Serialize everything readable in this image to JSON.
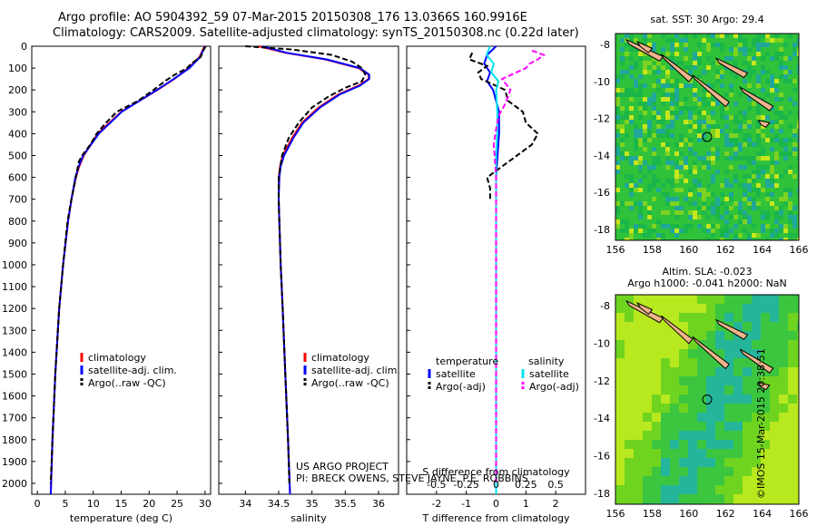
{
  "header": {
    "line1": "Argo profile: AO 5904392_59 07-Mar-2015 20150308_176 13.0366S 160.9916E",
    "line2": "Climatology: CARS2009. Satellite-adjusted climatology: synTS_20150308.nc (0.22d later)"
  },
  "credits": {
    "project": "US ARGO PROJECT",
    "pi": "PI: BRECK OWENS, STEVE JAYNE, P.E. ROBBINS",
    "stamp": "©IMOS 15-Mar-2015 20:38:51"
  },
  "colors": {
    "climatology": "#ff0000",
    "satellite": "#0000ff",
    "argo": "#000000",
    "sal_satellite": "#00e5ee",
    "sal_argo": "#ff00ff"
  },
  "chart_data": [
    {
      "type": "line",
      "xlabel": "temperature (deg C)",
      "ylim": [
        2050,
        0
      ],
      "xlim": [
        -1,
        31
      ],
      "xticks": [
        "0",
        "5",
        "10",
        "15",
        "20",
        "25",
        "30"
      ],
      "yticks": [
        "0",
        "100",
        "200",
        "300",
        "400",
        "500",
        "600",
        "700",
        "800",
        "900",
        "1000",
        "1100",
        "1200",
        "1300",
        "1400",
        "1500",
        "1600",
        "1700",
        "1800",
        "1900",
        "2000"
      ],
      "legend": [
        "climatology",
        "satellite-adj. clim.",
        "Argo(..raw -QC)"
      ],
      "series": [
        {
          "name": "climatology",
          "y": [
            0,
            50,
            100,
            150,
            200,
            300,
            400,
            500,
            550,
            600,
            700,
            800,
            1000,
            1200,
            1500,
            1800,
            2050
          ],
          "x": [
            29.9,
            29.0,
            27.0,
            24.5,
            21.5,
            15.0,
            10.8,
            8.3,
            7.5,
            6.9,
            6.1,
            5.5,
            4.6,
            3.9,
            3.2,
            2.7,
            2.4
          ]
        },
        {
          "name": "satellite-adj. clim.",
          "y": [
            0,
            50,
            100,
            150,
            200,
            300,
            400,
            500,
            550,
            600,
            700,
            800,
            1000,
            1200,
            1500,
            1800,
            2050
          ],
          "x": [
            30.0,
            29.1,
            27.2,
            24.4,
            21.4,
            15.1,
            11.0,
            8.2,
            7.4,
            6.8,
            6.1,
            5.5,
            4.6,
            3.9,
            3.2,
            2.7,
            2.4
          ]
        },
        {
          "name": "Argo(..raw -QC)",
          "y": [
            0,
            20,
            50,
            80,
            100,
            130,
            160,
            200,
            250,
            300,
            350,
            400,
            450,
            500,
            530,
            600,
            700,
            800,
            900,
            1000,
            1200,
            1500,
            1800,
            2000
          ],
          "x": [
            30.1,
            29.7,
            29.2,
            27.5,
            26.8,
            24.6,
            22.8,
            20.8,
            18.0,
            14.2,
            12.3,
            10.6,
            9.5,
            8.0,
            7.4,
            6.9,
            6.1,
            5.4,
            5.0,
            4.6,
            3.9,
            3.2,
            2.7,
            2.4
          ]
        }
      ]
    },
    {
      "type": "line",
      "xlabel": "salinity",
      "ylim": [
        2050,
        0
      ],
      "xlim": [
        33.6,
        36.3
      ],
      "xticks": [
        "34",
        "34.5",
        "35",
        "35.5",
        "36"
      ],
      "legend": [
        "climatology",
        "satellite-adj. clim.",
        "Argo(..raw -QC)"
      ],
      "series": [
        {
          "name": "climatology",
          "y": [
            0,
            30,
            60,
            100,
            130,
            150,
            180,
            220,
            280,
            350,
            420,
            500,
            550,
            600,
            700,
            800,
            1000,
            1200,
            1500,
            1800,
            2050
          ],
          "x": [
            34.2,
            34.6,
            35.2,
            35.7,
            35.85,
            35.85,
            35.7,
            35.4,
            35.1,
            34.85,
            34.7,
            34.56,
            34.52,
            34.5,
            34.5,
            34.51,
            34.53,
            34.56,
            34.6,
            34.64,
            34.67
          ]
        },
        {
          "name": "satellite-adj. clim.",
          "y": [
            0,
            30,
            60,
            100,
            130,
            150,
            180,
            220,
            280,
            350,
            420,
            500,
            550,
            600,
            700,
            800,
            1000,
            1200,
            1500,
            1800,
            2050
          ],
          "x": [
            34.25,
            34.62,
            35.22,
            35.72,
            35.86,
            35.86,
            35.72,
            35.42,
            35.12,
            34.87,
            34.72,
            34.58,
            34.53,
            34.51,
            34.5,
            34.51,
            34.53,
            34.56,
            34.6,
            34.64,
            34.67
          ]
        },
        {
          "name": "Argo(..raw -QC)",
          "y": [
            0,
            15,
            40,
            70,
            100,
            130,
            160,
            190,
            230,
            280,
            350,
            420,
            500,
            600,
            700,
            800,
            1000,
            1200,
            1500,
            1800,
            2000
          ],
          "x": [
            34.0,
            34.7,
            35.3,
            35.6,
            35.75,
            35.8,
            35.75,
            35.5,
            35.25,
            35.0,
            34.8,
            34.65,
            34.55,
            34.5,
            34.5,
            34.51,
            34.53,
            34.56,
            34.6,
            34.64,
            34.66
          ]
        }
      ]
    },
    {
      "type": "line",
      "xlabel": "T difference from climatology",
      "xlabel_top": "S difference from climatology",
      "ylim": [
        2050,
        0
      ],
      "xlim": [
        -3,
        3
      ],
      "xticks": [
        "-2",
        "-1",
        "0",
        "1",
        "2"
      ],
      "xticks_top": [
        "-0.5",
        "-0.25",
        "0",
        "0.25",
        "0.5"
      ],
      "legend_headers": [
        "temperature",
        "salinity"
      ],
      "legend": [
        "satellite",
        "Argo(-adj)",
        "satellite",
        "Argo(-adj)"
      ],
      "series": [
        {
          "name": "satellite",
          "y": [
            0,
            40,
            80,
            120,
            160,
            200,
            300,
            400,
            500,
            600,
            800,
            1000,
            1500,
            2050
          ],
          "x": [
            0.0,
            -0.3,
            -0.4,
            -0.2,
            -0.3,
            -0.1,
            0.1,
            0.1,
            0.05,
            0.0,
            0.0,
            0.0,
            0.0,
            0.0
          ]
        },
        {
          "name": "Argo(-adj)",
          "y": [
            30,
            60,
            90,
            120,
            150,
            200,
            250,
            300,
            350,
            400,
            450,
            500,
            550,
            600,
            650,
            700
          ],
          "x": [
            -0.8,
            -0.9,
            -0.3,
            -0.6,
            -0.5,
            0.3,
            0.4,
            0.9,
            1.0,
            1.4,
            1.2,
            0.7,
            0.2,
            -0.3,
            -0.2,
            -0.2
          ]
        },
        {
          "name": "salinity satellite",
          "y": [
            0,
            40,
            80,
            120,
            160,
            200,
            300,
            400,
            500,
            600,
            800,
            1000,
            1500,
            2050
          ],
          "x": [
            -0.05,
            -0.08,
            -0.02,
            -0.04,
            0.02,
            0.0,
            0.01,
            0.01,
            0.0,
            0.0,
            0.0,
            0.0,
            0.0,
            0.0
          ]
        },
        {
          "name": "salinity Argo(-adj)",
          "y": [
            20,
            40,
            60,
            80,
            100,
            150,
            200,
            260,
            320,
            380,
            450,
            520,
            600,
            700,
            900,
            1200,
            1500,
            1800,
            2000
          ],
          "x": [
            0.3,
            0.4,
            0.35,
            0.28,
            0.25,
            0.05,
            0.12,
            0.08,
            0.02,
            0.0,
            -0.02,
            -0.01,
            0.0,
            0.0,
            0.0,
            0.0,
            0.0,
            0.0,
            0.0
          ]
        }
      ]
    }
  ],
  "maps": [
    {
      "title": "sat. SST: 30 Argo: 29.4",
      "xticks": [
        "156",
        "158",
        "160",
        "162",
        "164",
        "166"
      ],
      "yticks": [
        "-8",
        "-10",
        "-12",
        "-14",
        "-16",
        "-18"
      ]
    },
    {
      "title1": "Altim. SLA: -0.023",
      "title2": "Argo h1000: -0.041 h2000: NaN",
      "xticks": [
        "156",
        "158",
        "160",
        "162",
        "164",
        "166"
      ],
      "yticks": [
        "-8",
        "-10",
        "-12",
        "-14",
        "-16",
        "-18"
      ]
    }
  ]
}
